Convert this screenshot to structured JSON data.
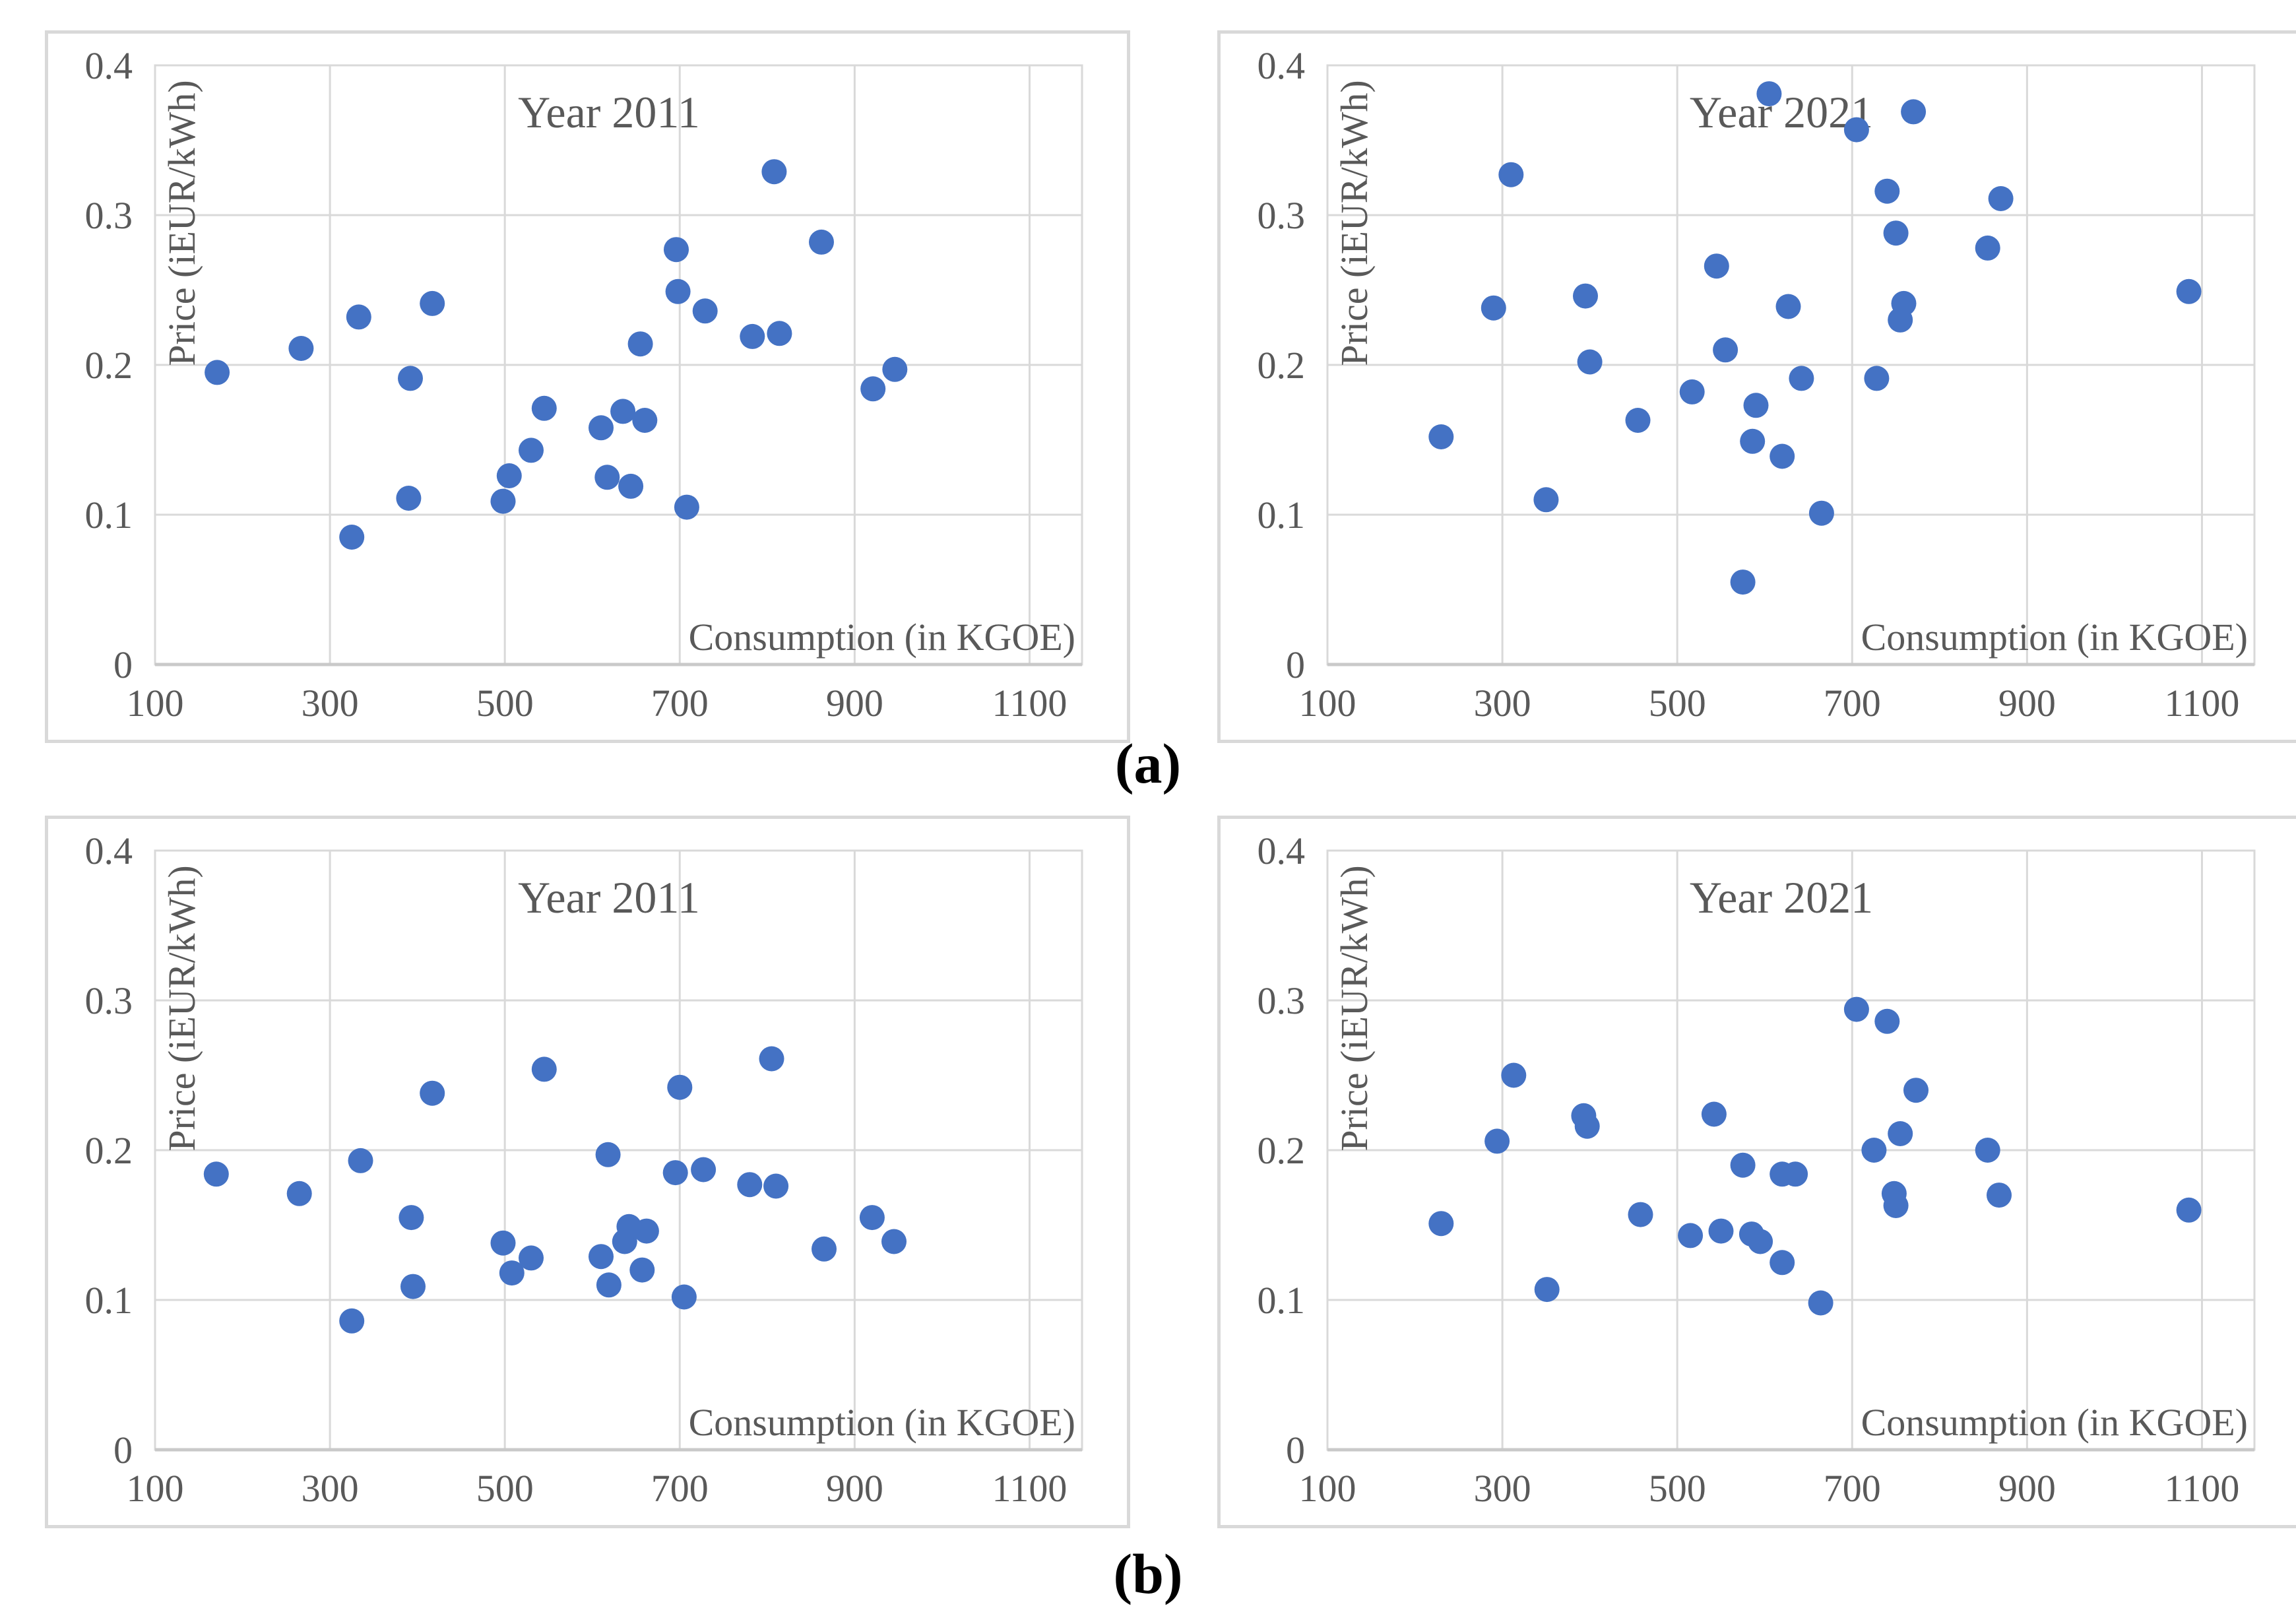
{
  "figure": {
    "panel_a_label": "(a)",
    "panel_b_label": "(b)"
  },
  "style": {
    "marker_color": "#4472C4",
    "grid_color": "#D9D9D9",
    "axis_line_color": "#C9C9C9",
    "chart_border_color": "#D9D9D9",
    "text_color": "#595959",
    "panel_label_color": "#000000",
    "background": "#FFFFFF"
  },
  "chart_data": [
    {
      "id": "panel-a-year-2011",
      "panel": "a",
      "type": "scatter",
      "title": "Year 2011",
      "xlabel": "Consumption (in KGOE)",
      "ylabel": "Price (iEUR/kWh)",
      "xlim": [
        100,
        1160
      ],
      "ylim": [
        0,
        0.4
      ],
      "xticks": [
        100,
        300,
        500,
        700,
        900,
        1100
      ],
      "yticks": [
        0,
        0.1,
        0.2,
        0.3,
        0.4
      ],
      "ytick_labels": [
        "0",
        "0.1",
        "0.2",
        "0.3",
        "0.4"
      ],
      "grid": true,
      "legend": "none",
      "points": [
        [
          171,
          0.195
        ],
        [
          267,
          0.211
        ],
        [
          325,
          0.085
        ],
        [
          333,
          0.232
        ],
        [
          390,
          0.111
        ],
        [
          392,
          0.191
        ],
        [
          417,
          0.241
        ],
        [
          498,
          0.109
        ],
        [
          505,
          0.126
        ],
        [
          530,
          0.143
        ],
        [
          545,
          0.171
        ],
        [
          610,
          0.158
        ],
        [
          617,
          0.125
        ],
        [
          635,
          0.169
        ],
        [
          644,
          0.119
        ],
        [
          655,
          0.214
        ],
        [
          660,
          0.163
        ],
        [
          696,
          0.277
        ],
        [
          698,
          0.249
        ],
        [
          708,
          0.105
        ],
        [
          729,
          0.236
        ],
        [
          783,
          0.219
        ],
        [
          808,
          0.329
        ],
        [
          814,
          0.221
        ],
        [
          862,
          0.282
        ],
        [
          921,
          0.184
        ],
        [
          946,
          0.197
        ]
      ]
    },
    {
      "id": "panel-a-year-2021",
      "panel": "a",
      "type": "scatter",
      "title": "Year 2021",
      "xlabel": "Consumption (in KGOE)",
      "ylabel": "Price (iEUR/kWh)",
      "xlim": [
        100,
        1160
      ],
      "ylim": [
        0,
        0.4
      ],
      "xticks": [
        100,
        300,
        500,
        700,
        900,
        1100
      ],
      "yticks": [
        0,
        0.1,
        0.2,
        0.3,
        0.4
      ],
      "ytick_labels": [
        "0",
        "0.1",
        "0.2",
        "0.3",
        "0.4"
      ],
      "grid": true,
      "legend": "none",
      "points": [
        [
          230,
          0.152
        ],
        [
          290,
          0.238
        ],
        [
          310,
          0.327
        ],
        [
          350,
          0.11
        ],
        [
          395,
          0.246
        ],
        [
          400,
          0.202
        ],
        [
          455,
          0.163
        ],
        [
          517,
          0.182
        ],
        [
          545,
          0.266
        ],
        [
          555,
          0.21
        ],
        [
          575,
          0.055
        ],
        [
          586,
          0.149
        ],
        [
          590,
          0.173
        ],
        [
          605,
          0.381
        ],
        [
          620,
          0.139
        ],
        [
          627,
          0.239
        ],
        [
          642,
          0.191
        ],
        [
          665,
          0.101
        ],
        [
          705,
          0.357
        ],
        [
          728,
          0.191
        ],
        [
          740,
          0.316
        ],
        [
          750,
          0.288
        ],
        [
          755,
          0.23
        ],
        [
          759,
          0.241
        ],
        [
          770,
          0.369
        ],
        [
          855,
          0.278
        ],
        [
          870,
          0.311
        ],
        [
          1085,
          0.249
        ]
      ]
    },
    {
      "id": "panel-b-year-2011",
      "panel": "b",
      "type": "scatter",
      "title": "Year 2011",
      "xlabel": "Consumption (in KGOE)",
      "ylabel": "Price (iEUR/kWh)",
      "xlim": [
        100,
        1160
      ],
      "ylim": [
        0,
        0.4
      ],
      "xticks": [
        100,
        300,
        500,
        700,
        900,
        1100
      ],
      "yticks": [
        0,
        0.1,
        0.2,
        0.3,
        0.4
      ],
      "ytick_labels": [
        "0",
        "0.1",
        "0.2",
        "0.3",
        "0.4"
      ],
      "grid": true,
      "legend": "none",
      "points": [
        [
          170,
          0.184
        ],
        [
          265,
          0.171
        ],
        [
          325,
          0.086
        ],
        [
          335,
          0.193
        ],
        [
          393,
          0.155
        ],
        [
          395,
          0.109
        ],
        [
          417,
          0.238
        ],
        [
          498,
          0.138
        ],
        [
          508,
          0.118
        ],
        [
          530,
          0.128
        ],
        [
          545,
          0.254
        ],
        [
          610,
          0.129
        ],
        [
          618,
          0.197
        ],
        [
          619,
          0.11
        ],
        [
          637,
          0.139
        ],
        [
          642,
          0.149
        ],
        [
          657,
          0.12
        ],
        [
          662,
          0.146
        ],
        [
          695,
          0.185
        ],
        [
          700,
          0.242
        ],
        [
          705,
          0.102
        ],
        [
          727,
          0.187
        ],
        [
          780,
          0.177
        ],
        [
          805,
          0.261
        ],
        [
          810,
          0.176
        ],
        [
          865,
          0.134
        ],
        [
          920,
          0.155
        ],
        [
          945,
          0.139
        ]
      ]
    },
    {
      "id": "panel-b-year-2021",
      "panel": "b",
      "type": "scatter",
      "title": "Year 2021",
      "xlabel": "Consumption (in KGOE)",
      "ylabel": "Price (iEUR/kWh)",
      "xlim": [
        100,
        1160
      ],
      "ylim": [
        0,
        0.4
      ],
      "xticks": [
        100,
        300,
        500,
        700,
        900,
        1100
      ],
      "yticks": [
        0,
        0.1,
        0.2,
        0.3,
        0.4
      ],
      "ytick_labels": [
        "0",
        "0.1",
        "0.2",
        "0.3",
        "0.4"
      ],
      "grid": true,
      "legend": "none",
      "points": [
        [
          230,
          0.151
        ],
        [
          294,
          0.206
        ],
        [
          313,
          0.25
        ],
        [
          351,
          0.107
        ],
        [
          393,
          0.223
        ],
        [
          397,
          0.216
        ],
        [
          458,
          0.157
        ],
        [
          515,
          0.143
        ],
        [
          542,
          0.224
        ],
        [
          550,
          0.146
        ],
        [
          575,
          0.19
        ],
        [
          585,
          0.144
        ],
        [
          595,
          0.139
        ],
        [
          620,
          0.125
        ],
        [
          620,
          0.184
        ],
        [
          635,
          0.184
        ],
        [
          664,
          0.098
        ],
        [
          705,
          0.294
        ],
        [
          725,
          0.2
        ],
        [
          740,
          0.286
        ],
        [
          748,
          0.171
        ],
        [
          750,
          0.163
        ],
        [
          755,
          0.211
        ],
        [
          773,
          0.24
        ],
        [
          855,
          0.2
        ],
        [
          868,
          0.17
        ],
        [
          1085,
          0.16
        ]
      ]
    }
  ]
}
